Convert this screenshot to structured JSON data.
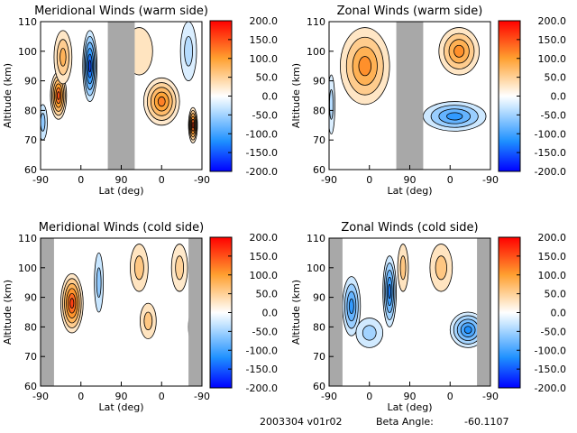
{
  "footer": {
    "id": "2003304 v01r02",
    "beta_label": "Beta Angle:",
    "beta_value": "-60.1107"
  },
  "colorbar": {
    "ticks": [
      "200.0",
      "150.0",
      "100.0",
      "50.0",
      "0.0",
      "-50.0",
      "-100.0",
      "-150.0",
      "-200.0"
    ],
    "range": [
      -200,
      200
    ],
    "colors": [
      "#0000ff",
      "#1e90ff",
      "#c8e6ff",
      "#ffffff",
      "#ffe4c0",
      "#ffa030",
      "#ff0000"
    ]
  },
  "chart_data": [
    {
      "type": "contour",
      "title": "Meridional Winds (warm side)",
      "xlabel": "Lat (deg)",
      "ylabel": "Altitude (km)",
      "xticks": [
        "-90",
        "0",
        "90",
        "0",
        "-90"
      ],
      "yticks": [
        "60",
        "70",
        "80",
        "90",
        "100",
        "110"
      ],
      "ylim": [
        60,
        110
      ],
      "gaps": [
        {
          "from_lat": 60,
          "from_leg": "asc",
          "to_lat": 60,
          "to_leg": "desc"
        }
      ],
      "features": [
        {
          "leg": "asc",
          "lat": -50,
          "alt": 85,
          "value": 150,
          "dlat": 18,
          "dalt": 8
        },
        {
          "leg": "asc",
          "lat": -40,
          "alt": 98,
          "value": 80,
          "dlat": 20,
          "dalt": 9
        },
        {
          "leg": "asc",
          "lat": 20,
          "alt": 95,
          "value": -160,
          "dlat": 16,
          "dalt": 12
        },
        {
          "leg": "asc",
          "lat": -85,
          "alt": 76,
          "value": -60,
          "dlat": 10,
          "dalt": 6
        },
        {
          "leg": "desc",
          "lat": 0,
          "alt": 83,
          "value": 120,
          "dlat": 40,
          "dalt": 8
        },
        {
          "leg": "desc",
          "lat": -70,
          "alt": 75,
          "value": 160,
          "dlat": 10,
          "dalt": 6
        },
        {
          "leg": "desc",
          "lat": 50,
          "alt": 100,
          "value": 30,
          "dlat": 30,
          "dalt": 8
        },
        {
          "leg": "desc",
          "lat": -60,
          "alt": 100,
          "value": -40,
          "dlat": 18,
          "dalt": 10
        }
      ]
    },
    {
      "type": "contour",
      "title": "Zonal Winds (warm side)",
      "xlabel": "Lat (deg)",
      "ylabel": "Altitude (km)",
      "xticks": [
        "-90",
        "0",
        "90",
        "0",
        "-90"
      ],
      "yticks": [
        "60",
        "70",
        "80",
        "90",
        "100",
        "110"
      ],
      "ylim": [
        60,
        110
      ],
      "gaps": [
        {
          "from_lat": 60,
          "from_leg": "asc",
          "to_lat": 60,
          "to_leg": "desc"
        }
      ],
      "features": [
        {
          "leg": "asc",
          "lat": -10,
          "alt": 95,
          "value": 110,
          "dlat": 55,
          "dalt": 13
        },
        {
          "leg": "asc",
          "lat": -85,
          "alt": 82,
          "value": -40,
          "dlat": 8,
          "dalt": 10
        },
        {
          "leg": "desc",
          "lat": -20,
          "alt": 100,
          "value": 110,
          "dlat": 45,
          "dalt": 8
        },
        {
          "leg": "desc",
          "lat": -10,
          "alt": 78,
          "value": -110,
          "dlat": 70,
          "dalt": 5
        }
      ]
    },
    {
      "type": "contour",
      "title": "Meridional Winds (cold side)",
      "xlabel": "Lat (deg)",
      "ylabel": "Altitude (km)",
      "xticks": [
        "-90",
        "0",
        "90",
        "0",
        "-90"
      ],
      "yticks": [
        "60",
        "70",
        "80",
        "90",
        "100",
        "110"
      ],
      "ylim": [
        60,
        110
      ],
      "gaps": [
        {
          "from_lat": -90,
          "from_leg": "asc",
          "to_lat": -60,
          "to_leg": "asc"
        },
        {
          "from_lat": -60,
          "from_leg": "desc",
          "to_lat": -90,
          "to_leg": "desc"
        }
      ],
      "features": [
        {
          "leg": "asc",
          "lat": -20,
          "alt": 88,
          "value": 160,
          "dlat": 25,
          "dalt": 10
        },
        {
          "leg": "asc",
          "lat": 40,
          "alt": 95,
          "value": -60,
          "dlat": 10,
          "dalt": 10
        },
        {
          "leg": "desc",
          "lat": 50,
          "alt": 100,
          "value": 60,
          "dlat": 20,
          "dalt": 8
        },
        {
          "leg": "desc",
          "lat": 30,
          "alt": 82,
          "value": 60,
          "dlat": 18,
          "dalt": 6
        },
        {
          "leg": "desc",
          "lat": -40,
          "alt": 100,
          "value": 50,
          "dlat": 18,
          "dalt": 8
        },
        {
          "leg": "desc",
          "lat": -70,
          "alt": 80,
          "value": -60,
          "dlat": 10,
          "dalt": 6
        }
      ]
    },
    {
      "type": "contour",
      "title": "Zonal Winds (cold side)",
      "xlabel": "Lat (deg)",
      "ylabel": "Altitude (km)",
      "xticks": [
        "-90",
        "0",
        "90",
        "0",
        "-90"
      ],
      "yticks": [
        "60",
        "70",
        "80",
        "90",
        "100",
        "110"
      ],
      "ylim": [
        60,
        110
      ],
      "gaps": [
        {
          "from_lat": -90,
          "from_leg": "asc",
          "to_lat": -60,
          "to_leg": "asc"
        },
        {
          "from_lat": -60,
          "from_leg": "desc",
          "to_lat": -90,
          "to_leg": "desc"
        }
      ],
      "features": [
        {
          "leg": "asc",
          "lat": -40,
          "alt": 87,
          "value": -110,
          "dlat": 20,
          "dalt": 10
        },
        {
          "leg": "asc",
          "lat": 45,
          "alt": 92,
          "value": -130,
          "dlat": 15,
          "dalt": 12
        },
        {
          "leg": "asc",
          "lat": 75,
          "alt": 100,
          "value": 60,
          "dlat": 12,
          "dalt": 8
        },
        {
          "leg": "desc",
          "lat": 20,
          "alt": 100,
          "value": 60,
          "dlat": 25,
          "dalt": 8
        },
        {
          "leg": "desc",
          "lat": -40,
          "alt": 79,
          "value": -120,
          "dlat": 40,
          "dalt": 6
        },
        {
          "leg": "asc",
          "lat": 0,
          "alt": 78,
          "value": -50,
          "dlat": 30,
          "dalt": 5
        }
      ]
    }
  ]
}
